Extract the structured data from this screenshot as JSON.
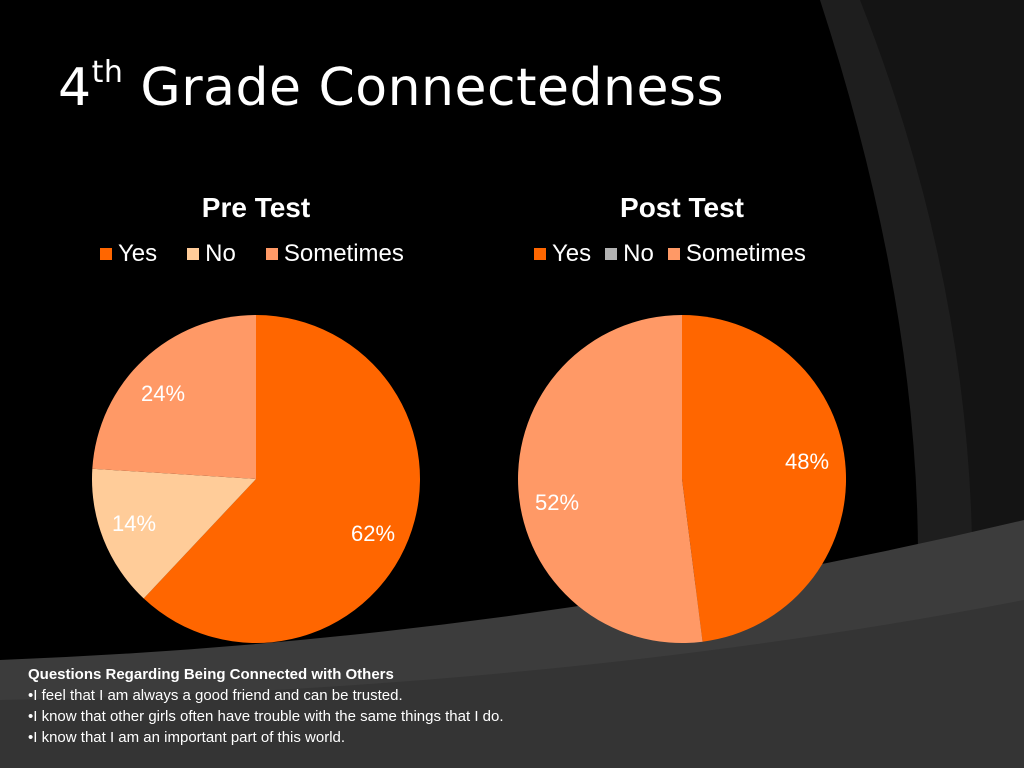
{
  "slide": {
    "title_main": "4",
    "title_sup": "th",
    "title_rest": " Grade Connectedness"
  },
  "colors": {
    "yes": "#FF6600",
    "no_pre": "#FFCC99",
    "no_post": "#B2B2B2",
    "sometimes": "#FF9966",
    "background": "#000000",
    "swoosh_dark": "#1E1E1E",
    "swoosh_light": "#3C3C3C"
  },
  "chart_data": [
    {
      "type": "pie",
      "title": "Pre Test",
      "categories": [
        "Yes",
        "No",
        "Sometimes"
      ],
      "values": [
        62,
        14,
        24
      ],
      "value_labels": [
        "62%",
        "14%",
        "24%"
      ],
      "legend_position": "top"
    },
    {
      "type": "pie",
      "title": "Post Test",
      "categories": [
        "Yes",
        "No",
        "Sometimes"
      ],
      "values": [
        48,
        0,
        52
      ],
      "value_labels": [
        "48%",
        "",
        "52%"
      ],
      "legend_position": "top"
    }
  ],
  "notes": {
    "heading": "Questions Regarding Being Connected with Others",
    "items": [
      "•I feel that I am always a good friend and can be trusted.",
      "•I know that other girls often have trouble with the same things that I do.",
      "•I know that I am an important part of this world."
    ]
  }
}
